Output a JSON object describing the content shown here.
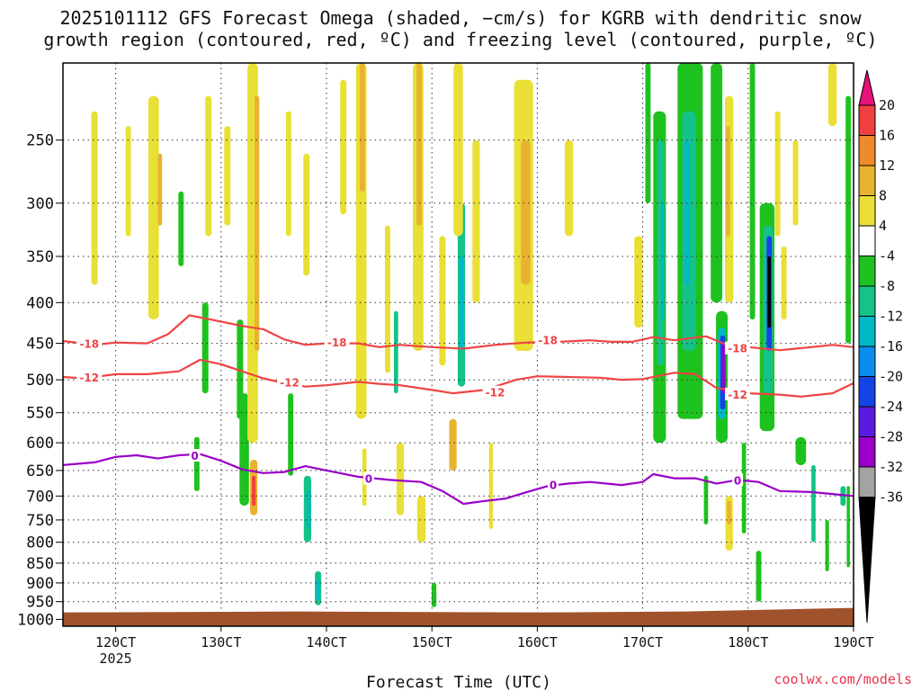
{
  "title_line1": "2025101112 GFS Forecast Omega (shaded, −cm/s) for KGRB with dendritic snow",
  "title_line2": "growth region (contoured, red, ºC) and freezing level (contoured, purple, ºC)",
  "watermark": "coolwx.com/models",
  "colors": {
    "background": "#ffffff",
    "frame": "#000000",
    "ground": "#a0522d",
    "dgz_contour": "#ee4444",
    "freezing_contour": "#9a00c8"
  },
  "chart_data": {
    "type": "heatmap",
    "title": "2025101112 GFS Forecast Omega (shaded, −cm/s) for KGRB with dendritic snow growth region (contoured, red, ºC) and freezing level (contoured, purple, ºC)",
    "xlabel": "Forecast Time (UTC)",
    "ylabel": "",
    "x_range_hours": [
      115,
      190
    ],
    "y_range_hpa": [
      1020,
      200
    ],
    "x_ticks": [
      {
        "hour": 120,
        "label": "120CT",
        "sublabel": "2025"
      },
      {
        "hour": 130,
        "label": "130CT"
      },
      {
        "hour": 140,
        "label": "140CT"
      },
      {
        "hour": 150,
        "label": "150CT"
      },
      {
        "hour": 160,
        "label": "160CT"
      },
      {
        "hour": 170,
        "label": "170CT"
      },
      {
        "hour": 180,
        "label": "180CT"
      },
      {
        "hour": 190,
        "label": "190CT"
      }
    ],
    "y_ticks": [
      250,
      300,
      350,
      400,
      450,
      500,
      550,
      600,
      650,
      700,
      750,
      800,
      850,
      900,
      950,
      1000
    ],
    "colorbar": {
      "levels": [
        -36,
        -32,
        -28,
        -24,
        -20,
        -16,
        -12,
        -8,
        -4,
        4,
        8,
        12,
        16,
        20
      ],
      "labels": [
        "20",
        "16",
        "12",
        "8",
        "4",
        "-4",
        "-8",
        "-12",
        "-16",
        "-20",
        "-24",
        "-28",
        "-32",
        "-36"
      ],
      "colors_high_to_low": [
        "#e6117a",
        "#f04040",
        "#ef8a2c",
        "#e8b330",
        "#e9df35",
        "#ffffff",
        "#1ec21e",
        "#15c289",
        "#00b9c7",
        "#0a8cf0",
        "#1444e6",
        "#5a1ae0",
        "#9a00c8",
        "#a3a3a3",
        "#000000"
      ]
    },
    "series": [
      {
        "name": "-18 C isotherm (dendritic growth upper)",
        "label": "-18",
        "color": "#ee4444",
        "points": [
          [
            115,
            447
          ],
          [
            118,
            452
          ],
          [
            120,
            449
          ],
          [
            123,
            450
          ],
          [
            125,
            438
          ],
          [
            127,
            415
          ],
          [
            129,
            420
          ],
          [
            132,
            428
          ],
          [
            134,
            432
          ],
          [
            136,
            445
          ],
          [
            138,
            452
          ],
          [
            140,
            450
          ],
          [
            143,
            450
          ],
          [
            145,
            455
          ],
          [
            147,
            452
          ],
          [
            150,
            455
          ],
          [
            153,
            457
          ],
          [
            156,
            452
          ],
          [
            159,
            449
          ],
          [
            162,
            448
          ],
          [
            165,
            446
          ],
          [
            167,
            448
          ],
          [
            169,
            448
          ],
          [
            171,
            442
          ],
          [
            173,
            446
          ],
          [
            176,
            441
          ],
          [
            178,
            452
          ],
          [
            180,
            455
          ],
          [
            183,
            459
          ],
          [
            186,
            455
          ],
          [
            188,
            452
          ],
          [
            190,
            455
          ]
        ]
      },
      {
        "name": "-12 C isotherm (dendritic growth lower)",
        "label": "-12",
        "color": "#ee4444",
        "points": [
          [
            115,
            496
          ],
          [
            117,
            498
          ],
          [
            120,
            492
          ],
          [
            123,
            492
          ],
          [
            126,
            488
          ],
          [
            128,
            472
          ],
          [
            130,
            478
          ],
          [
            132,
            488
          ],
          [
            134,
            498
          ],
          [
            136,
            505
          ],
          [
            138,
            510
          ],
          [
            140,
            508
          ],
          [
            143,
            503
          ],
          [
            145,
            506
          ],
          [
            147,
            508
          ],
          [
            150,
            515
          ],
          [
            152,
            520
          ],
          [
            155,
            515
          ],
          [
            158,
            500
          ],
          [
            160,
            495
          ],
          [
            163,
            496
          ],
          [
            166,
            497
          ],
          [
            168,
            500
          ],
          [
            170,
            499
          ],
          [
            173,
            490
          ],
          [
            175,
            492
          ],
          [
            177,
            512
          ],
          [
            180,
            520
          ],
          [
            183,
            522
          ],
          [
            185,
            525
          ],
          [
            188,
            520
          ],
          [
            190,
            505
          ]
        ]
      },
      {
        "name": "0 C freezing level",
        "label": "0",
        "color": "#9a00c8",
        "points": [
          [
            115,
            640
          ],
          [
            118,
            635
          ],
          [
            120,
            625
          ],
          [
            122,
            622
          ],
          [
            124,
            628
          ],
          [
            126,
            622
          ],
          [
            128,
            620
          ],
          [
            130,
            632
          ],
          [
            132,
            648
          ],
          [
            134,
            655
          ],
          [
            136,
            653
          ],
          [
            138,
            642
          ],
          [
            140,
            650
          ],
          [
            143,
            662
          ],
          [
            146,
            668
          ],
          [
            149,
            672
          ],
          [
            151,
            690
          ],
          [
            153,
            716
          ],
          [
            155,
            710
          ],
          [
            157,
            705
          ],
          [
            159,
            692
          ],
          [
            161,
            680
          ],
          [
            163,
            675
          ],
          [
            165,
            672
          ],
          [
            168,
            678
          ],
          [
            170,
            672
          ],
          [
            171,
            657
          ],
          [
            173,
            665
          ],
          [
            175,
            665
          ],
          [
            177,
            675
          ],
          [
            179,
            668
          ],
          [
            181,
            672
          ],
          [
            183,
            690
          ],
          [
            186,
            692
          ],
          [
            188,
            696
          ],
          [
            190,
            700
          ]
        ]
      }
    ],
    "contour_labels": [
      {
        "text": "-18",
        "hour": 117.5,
        "p": 450
      },
      {
        "text": "-18",
        "hour": 141,
        "p": 448
      },
      {
        "text": "-18",
        "hour": 161,
        "p": 445
      },
      {
        "text": "-18",
        "hour": 179,
        "p": 456
      },
      {
        "text": "-12",
        "hour": 117.5,
        "p": 496
      },
      {
        "text": "-12",
        "hour": 136.5,
        "p": 503
      },
      {
        "text": "-12",
        "hour": 156,
        "p": 518
      },
      {
        "text": "-12",
        "hour": 179,
        "p": 521
      },
      {
        "text": "0",
        "hour": 127.5,
        "p": 622
      },
      {
        "text": "0",
        "hour": 144,
        "p": 665
      },
      {
        "text": "0",
        "hour": 161.5,
        "p": 677
      },
      {
        "text": "0",
        "hour": 179,
        "p": 668
      }
    ],
    "shaded_regions": [
      {
        "hour": 118,
        "p_top": 230,
        "p_bot": 380,
        "w": 0.6,
        "level": 4
      },
      {
        "hour": 121.2,
        "p_top": 240,
        "p_bot": 330,
        "w": 0.5,
        "level": 4
      },
      {
        "hour": 123.6,
        "p_top": 220,
        "p_bot": 420,
        "w": 1.0,
        "level": 4
      },
      {
        "hour": 124.2,
        "p_top": 260,
        "p_bot": 320,
        "w": 0.4,
        "level": 8
      },
      {
        "hour": 128.8,
        "p_top": 220,
        "p_bot": 330,
        "w": 0.6,
        "level": 4
      },
      {
        "hour": 130.6,
        "p_top": 240,
        "p_bot": 320,
        "w": 0.6,
        "level": 4
      },
      {
        "hour": 126.2,
        "p_top": 290,
        "p_bot": 360,
        "w": 0.5,
        "level": -4
      },
      {
        "hour": 128.5,
        "p_top": 400,
        "p_bot": 520,
        "w": 0.6,
        "level": -4
      },
      {
        "hour": 127.7,
        "p_top": 590,
        "p_bot": 690,
        "w": 0.5,
        "level": -4
      },
      {
        "hour": 131.8,
        "p_top": 420,
        "p_bot": 560,
        "w": 0.6,
        "level": -4
      },
      {
        "hour": 132.2,
        "p_top": 520,
        "p_bot": 720,
        "w": 0.9,
        "level": -4
      },
      {
        "hour": 133.0,
        "p_top": 200,
        "p_bot": 600,
        "w": 1.0,
        "level": 4
      },
      {
        "hour": 133.4,
        "p_top": 220,
        "p_bot": 460,
        "w": 0.45,
        "level": 8
      },
      {
        "hour": 133.1,
        "p_top": 630,
        "p_bot": 740,
        "w": 0.7,
        "level": 8
      },
      {
        "hour": 133.1,
        "p_top": 660,
        "p_bot": 720,
        "w": 0.35,
        "level": 16
      },
      {
        "hour": 136.4,
        "p_top": 230,
        "p_bot": 330,
        "w": 0.5,
        "level": 4
      },
      {
        "hour": 136.6,
        "p_top": 520,
        "p_bot": 660,
        "w": 0.5,
        "level": -4
      },
      {
        "hour": 138.1,
        "p_top": 260,
        "p_bot": 370,
        "w": 0.6,
        "level": 4
      },
      {
        "hour": 138.2,
        "p_top": 660,
        "p_bot": 800,
        "w": 0.7,
        "level": -8
      },
      {
        "hour": 138.3,
        "p_top": 690,
        "p_bot": 770,
        "w": 0.3,
        "level": -12
      },
      {
        "hour": 139.2,
        "p_top": 870,
        "p_bot": 960,
        "w": 0.6,
        "level": -8
      },
      {
        "hour": 139.2,
        "p_top": 890,
        "p_bot": 945,
        "w": 0.3,
        "level": -12
      },
      {
        "hour": 141.6,
        "p_top": 210,
        "p_bot": 310,
        "w": 0.6,
        "level": 4
      },
      {
        "hour": 143.3,
        "p_top": 200,
        "p_bot": 560,
        "w": 1.0,
        "level": 4
      },
      {
        "hour": 143.4,
        "p_top": 200,
        "p_bot": 290,
        "w": 0.5,
        "level": 8
      },
      {
        "hour": 143.6,
        "p_top": 610,
        "p_bot": 720,
        "w": 0.4,
        "level": 4
      },
      {
        "hour": 145.8,
        "p_top": 320,
        "p_bot": 490,
        "w": 0.5,
        "level": 4
      },
      {
        "hour": 146.6,
        "p_top": 410,
        "p_bot": 520,
        "w": 0.4,
        "level": -8
      },
      {
        "hour": 147.0,
        "p_top": 600,
        "p_bot": 740,
        "w": 0.7,
        "level": 4
      },
      {
        "hour": 148.7,
        "p_top": 200,
        "p_bot": 460,
        "w": 1.0,
        "level": 4
      },
      {
        "hour": 148.8,
        "p_top": 200,
        "p_bot": 320,
        "w": 0.5,
        "level": 8
      },
      {
        "hour": 149.0,
        "p_top": 700,
        "p_bot": 800,
        "w": 0.8,
        "level": 4
      },
      {
        "hour": 150.2,
        "p_top": 900,
        "p_bot": 965,
        "w": 0.45,
        "level": -4
      },
      {
        "hour": 151.0,
        "p_top": 330,
        "p_bot": 480,
        "w": 0.6,
        "level": 4
      },
      {
        "hour": 152.0,
        "p_top": 560,
        "p_bot": 650,
        "w": 0.7,
        "level": 8
      },
      {
        "hour": 152.8,
        "p_top": 300,
        "p_bot": 510,
        "w": 0.7,
        "level": -8
      },
      {
        "hour": 152.8,
        "p_top": 350,
        "p_bot": 460,
        "w": 0.35,
        "level": -12
      },
      {
        "hour": 152.5,
        "p_top": 200,
        "p_bot": 330,
        "w": 0.9,
        "level": 4
      },
      {
        "hour": 154.2,
        "p_top": 250,
        "p_bot": 400,
        "w": 0.7,
        "level": 4
      },
      {
        "hour": 155.6,
        "p_top": 600,
        "p_bot": 770,
        "w": 0.35,
        "level": 4
      },
      {
        "hour": 158.7,
        "p_top": 210,
        "p_bot": 460,
        "w": 1.8,
        "level": 4
      },
      {
        "hour": 158.9,
        "p_top": 250,
        "p_bot": 380,
        "w": 0.9,
        "level": 8
      },
      {
        "hour": 163.0,
        "p_top": 250,
        "p_bot": 330,
        "w": 0.8,
        "level": 4
      },
      {
        "hour": 169.6,
        "p_top": 330,
        "p_bot": 430,
        "w": 0.8,
        "level": 4
      },
      {
        "hour": 170.5,
        "p_top": 200,
        "p_bot": 300,
        "w": 0.5,
        "level": -4
      },
      {
        "hour": 171.6,
        "p_top": 230,
        "p_bot": 600,
        "w": 1.2,
        "level": -4
      },
      {
        "hour": 171.7,
        "p_top": 250,
        "p_bot": 480,
        "w": 0.7,
        "level": -8
      },
      {
        "hour": 171.9,
        "p_top": 300,
        "p_bot": 420,
        "w": 0.3,
        "level": -12
      },
      {
        "hour": 174.5,
        "p_top": 200,
        "p_bot": 560,
        "w": 2.4,
        "level": -4
      },
      {
        "hour": 174.4,
        "p_top": 230,
        "p_bot": 460,
        "w": 1.3,
        "level": -8
      },
      {
        "hour": 174.2,
        "p_top": 250,
        "p_bot": 380,
        "w": 0.5,
        "level": -12
      },
      {
        "hour": 176.0,
        "p_top": 660,
        "p_bot": 760,
        "w": 0.4,
        "level": -4
      },
      {
        "hour": 177.0,
        "p_top": 200,
        "p_bot": 400,
        "w": 1.1,
        "level": -4
      },
      {
        "hour": 177.5,
        "p_top": 410,
        "p_bot": 600,
        "w": 1.1,
        "level": -4
      },
      {
        "hour": 177.5,
        "p_top": 430,
        "p_bot": 560,
        "w": 0.7,
        "level": -12
      },
      {
        "hour": 177.6,
        "p_top": 440,
        "p_bot": 545,
        "w": 0.5,
        "level": -20
      },
      {
        "hour": 177.7,
        "p_top": 450,
        "p_bot": 520,
        "w": 0.3,
        "level": -28
      },
      {
        "hour": 178.2,
        "p_top": 220,
        "p_bot": 400,
        "w": 0.8,
        "level": 4
      },
      {
        "hour": 178.1,
        "p_top": 240,
        "p_bot": 330,
        "w": 0.4,
        "level": 8
      },
      {
        "hour": 178.2,
        "p_top": 700,
        "p_bot": 820,
        "w": 0.7,
        "level": 4
      },
      {
        "hour": 178.2,
        "p_top": 710,
        "p_bot": 760,
        "w": 0.4,
        "level": 8
      },
      {
        "hour": 179.6,
        "p_top": 600,
        "p_bot": 780,
        "w": 0.4,
        "level": -4
      },
      {
        "hour": 180.4,
        "p_top": 200,
        "p_bot": 420,
        "w": 0.5,
        "level": -4
      },
      {
        "hour": 181.0,
        "p_top": 820,
        "p_bot": 950,
        "w": 0.5,
        "level": -4
      },
      {
        "hour": 181.8,
        "p_top": 300,
        "p_bot": 580,
        "w": 1.4,
        "level": -4
      },
      {
        "hour": 181.9,
        "p_top": 320,
        "p_bot": 520,
        "w": 0.9,
        "level": -8
      },
      {
        "hour": 182.0,
        "p_top": 330,
        "p_bot": 460,
        "w": 0.5,
        "level": -20
      },
      {
        "hour": 182.0,
        "p_top": 350,
        "p_bot": 430,
        "w": 0.3,
        "level": -36
      },
      {
        "hour": 182.8,
        "p_top": 230,
        "p_bot": 330,
        "w": 0.5,
        "level": 4
      },
      {
        "hour": 183.4,
        "p_top": 340,
        "p_bot": 420,
        "w": 0.5,
        "level": 4
      },
      {
        "hour": 184.5,
        "p_top": 250,
        "p_bot": 320,
        "w": 0.5,
        "level": 4
      },
      {
        "hour": 185.0,
        "p_top": 590,
        "p_bot": 640,
        "w": 1.0,
        "level": -4
      },
      {
        "hour": 186.2,
        "p_top": 640,
        "p_bot": 800,
        "w": 0.4,
        "level": -8
      },
      {
        "hour": 188.0,
        "p_top": 200,
        "p_bot": 240,
        "w": 0.8,
        "level": 4
      },
      {
        "hour": 187.5,
        "p_top": 750,
        "p_bot": 870,
        "w": 0.35,
        "level": -4
      },
      {
        "hour": 189.5,
        "p_top": 220,
        "p_bot": 450,
        "w": 0.5,
        "level": -4
      },
      {
        "hour": 189.5,
        "p_top": 680,
        "p_bot": 860,
        "w": 0.3,
        "level": -4
      },
      {
        "hour": 189.0,
        "p_top": 680,
        "p_bot": 720,
        "w": 0.5,
        "level": -8
      }
    ],
    "ground_from_hpa": 975
  }
}
